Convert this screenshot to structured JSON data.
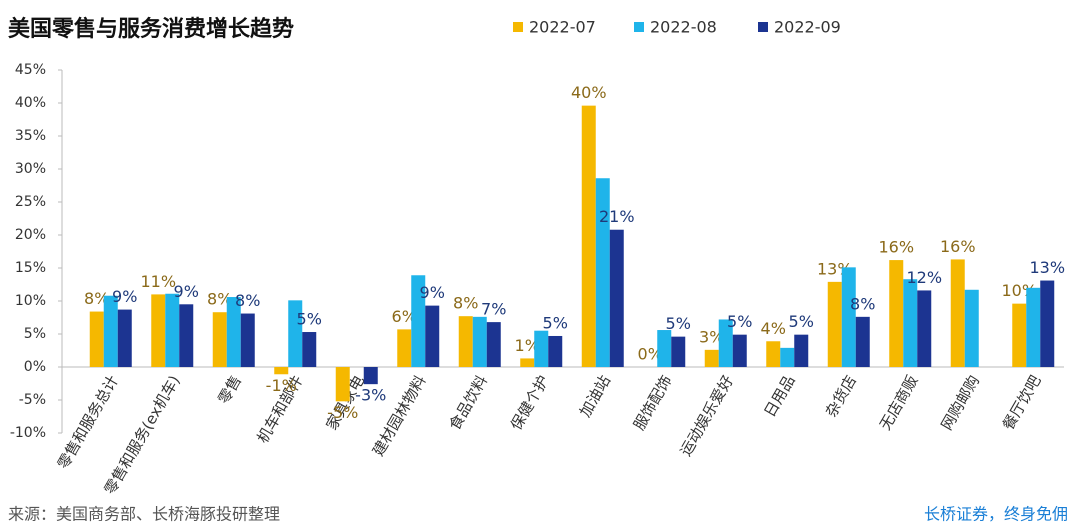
{
  "chart_data": {
    "type": "bar",
    "title": "美国零售与服务消费增长趋势",
    "categories": [
      "零售和服务总计",
      "零售和服务(ex机车)",
      "零售",
      "机车和部件",
      "家具家电",
      "建材园林物料",
      "食品饮料",
      "保健个护",
      "加油站",
      "服饰配饰",
      "运动娱乐爱好",
      "日用品",
      "杂货店",
      "无店商贩",
      "网购邮购",
      "餐厅饮吧"
    ],
    "series": [
      {
        "name": "2022-07",
        "color": "#f5b800",
        "label_color": "#8b6a1a",
        "values": [
          8.4,
          11,
          8.3,
          -1.1,
          -5.2,
          5.7,
          7.7,
          1.3,
          39.6,
          0,
          2.6,
          3.9,
          12.9,
          16.2,
          16.3,
          9.6
        ],
        "value_labels": [
          "8%",
          "11%",
          "8%",
          "-1%",
          "-5%",
          "6%",
          "8%",
          "1%",
          "40%",
          "0%",
          "3%",
          "4%",
          "13%",
          "16%",
          "16%",
          "10%"
        ]
      },
      {
        "name": "2022-08",
        "color": "#1fb4ea",
        "values": [
          10.8,
          11.1,
          10.6,
          10.1,
          0,
          13.9,
          7.6,
          5.5,
          28.6,
          5.6,
          7.2,
          2.9,
          15.1,
          13.3,
          11.7,
          12
        ]
      },
      {
        "name": "2022-09",
        "color": "#1c3491",
        "label_color": "#1f3a7a",
        "values": [
          8.7,
          9.5,
          8.1,
          5.3,
          -2.6,
          9.3,
          6.8,
          4.7,
          20.8,
          4.6,
          4.9,
          4.9,
          7.6,
          11.6,
          null,
          13.1
        ],
        "value_labels": [
          "9%",
          "9%",
          "8%",
          "5%",
          "-3%",
          "9%",
          "7%",
          "5%",
          "21%",
          "5%",
          "5%",
          "5%",
          "8%",
          "12%",
          null,
          "13%"
        ]
      }
    ],
    "ylim": [
      -10,
      45
    ],
    "yticks": [
      {
        "value": -10,
        "label": "-10%"
      },
      {
        "value": -5,
        "label": "-5%"
      },
      {
        "value": 0,
        "label": "0%"
      },
      {
        "value": 5,
        "label": "5%"
      },
      {
        "value": 10,
        "label": "10%"
      },
      {
        "value": 15,
        "label": "15%"
      },
      {
        "value": 20,
        "label": "20%"
      },
      {
        "value": 25,
        "label": "25%"
      },
      {
        "value": 30,
        "label": "30%"
      },
      {
        "value": 35,
        "label": "35%"
      },
      {
        "value": 40,
        "label": "40%"
      },
      {
        "value": 45,
        "label": "45%"
      }
    ],
    "grid": false,
    "source": "来源：美国商务部、长桥海豚投研整理",
    "footer": "长桥证券，终身免佣"
  }
}
